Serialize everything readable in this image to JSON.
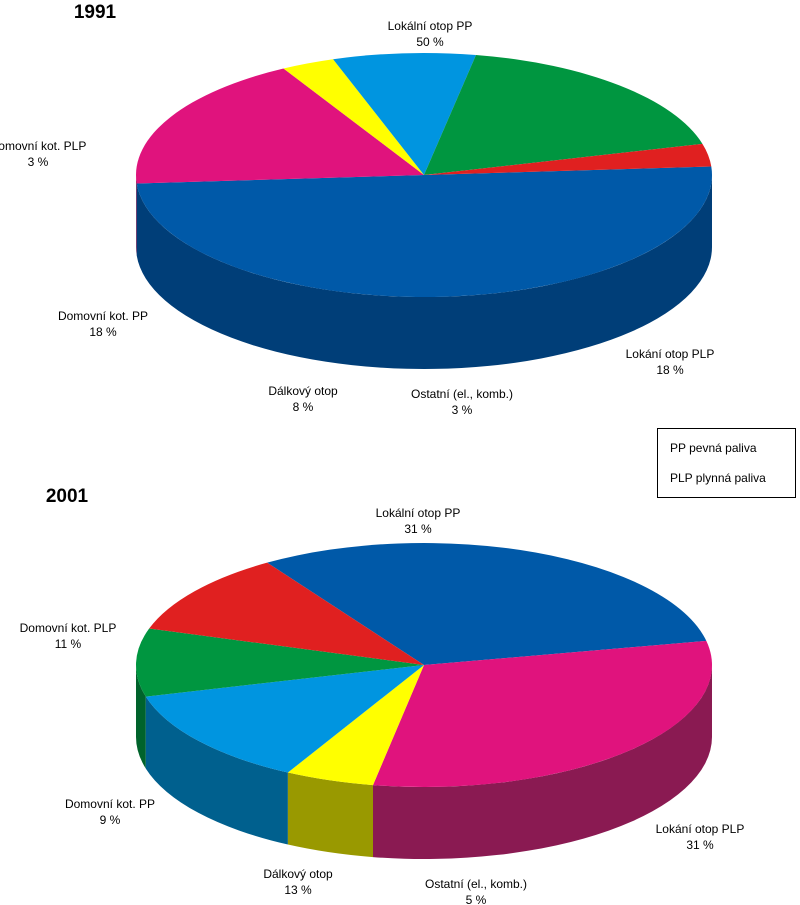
{
  "legend": {
    "line1": "PP  pevná paliva",
    "line2": "PLP plynná paliva"
  },
  "chart_data": [
    {
      "type": "pie",
      "title": "1991",
      "slices": [
        {
          "name": "Lokální otop PP",
          "value": 50,
          "label": "50 %",
          "color": "#0059A8",
          "side": "#003E78"
        },
        {
          "name": "Lokání otop PLP",
          "value": 18,
          "label": "18 %",
          "color": "#E0137D",
          "side": "#8A1A52"
        },
        {
          "name": "Ostatní (el., komb.)",
          "value": 3,
          "label": "3 %",
          "color": "#FFFF00",
          "side": "#999900"
        },
        {
          "name": "Dálkový otop",
          "value": 8,
          "label": "8 %",
          "color": "#0095E0",
          "side": "#00608E"
        },
        {
          "name": "Domovní kot. PP",
          "value": 18,
          "label": "18 %",
          "color": "#009640",
          "side": "#00632B"
        },
        {
          "name": "Domovní kot. PLP",
          "value": 3,
          "label": "3 %",
          "color": "#E02020",
          "side": "#8A1010"
        }
      ]
    },
    {
      "type": "pie",
      "title": "2001",
      "slices": [
        {
          "name": "Lokální otop PP",
          "value": 31,
          "label": "31 %",
          "color": "#0059A8",
          "side": "#003E78"
        },
        {
          "name": "Lokání otop PLP",
          "value": 31,
          "label": "31 %",
          "color": "#E0137D",
          "side": "#8A1A52"
        },
        {
          "name": "Ostatní (el., komb.)",
          "value": 5,
          "label": "5 %",
          "color": "#FFFF00",
          "side": "#999900"
        },
        {
          "name": "Dálkový otop",
          "value": 13,
          "label": "13 %",
          "color": "#0095E0",
          "side": "#00608E"
        },
        {
          "name": "Domovní kot. PP",
          "value": 9,
          "label": "9 %",
          "color": "#009640",
          "side": "#00632B"
        },
        {
          "name": "Domovní kot. PLP",
          "value": 11,
          "label": "11 %",
          "color": "#E02020",
          "side": "#8A1010"
        }
      ]
    }
  ]
}
